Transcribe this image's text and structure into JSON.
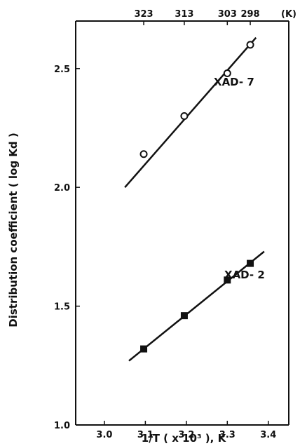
{
  "chart_data": {
    "type": "scatter",
    "title": "",
    "xlabel": "1/T ( x 10³ ), K",
    "ylabel": "Distribution   coefficient  ( log Kd )",
    "xlim": [
      2.93,
      3.45
    ],
    "ylim": [
      1.0,
      2.7
    ],
    "x_ticks": [
      "3.0",
      "3.1",
      "3.2",
      "3.3",
      "3.4"
    ],
    "x_tick_values": [
      3.0,
      3.1,
      3.2,
      3.3,
      3.4
    ],
    "y_ticks": [
      "1.0",
      "1.5",
      "2.0",
      "2.5"
    ],
    "y_tick_values": [
      1.0,
      1.5,
      2.0,
      2.5
    ],
    "top_axis": {
      "unit_label": "(K)",
      "ticks": [
        {
          "label": "323",
          "x": 3.096
        },
        {
          "label": "313",
          "x": 3.195
        },
        {
          "label": "303",
          "x": 3.3
        },
        {
          "label": "298",
          "x": 3.356
        }
      ]
    },
    "grid": false,
    "series": [
      {
        "name": "XAD- 7",
        "marker": "open-circle",
        "x": [
          3.096,
          3.195,
          3.3,
          3.356
        ],
        "y": [
          2.14,
          2.3,
          2.48,
          2.6
        ],
        "fit_line": {
          "x": [
            3.05,
            3.37
          ],
          "y": [
            2.0,
            2.63
          ]
        }
      },
      {
        "name": "XAD- 2",
        "marker": "filled-square",
        "x": [
          3.096,
          3.195,
          3.3,
          3.356
        ],
        "y": [
          1.32,
          1.46,
          1.61,
          1.68
        ],
        "fit_line": {
          "x": [
            3.06,
            3.39
          ],
          "y": [
            1.27,
            1.73
          ]
        }
      }
    ]
  }
}
